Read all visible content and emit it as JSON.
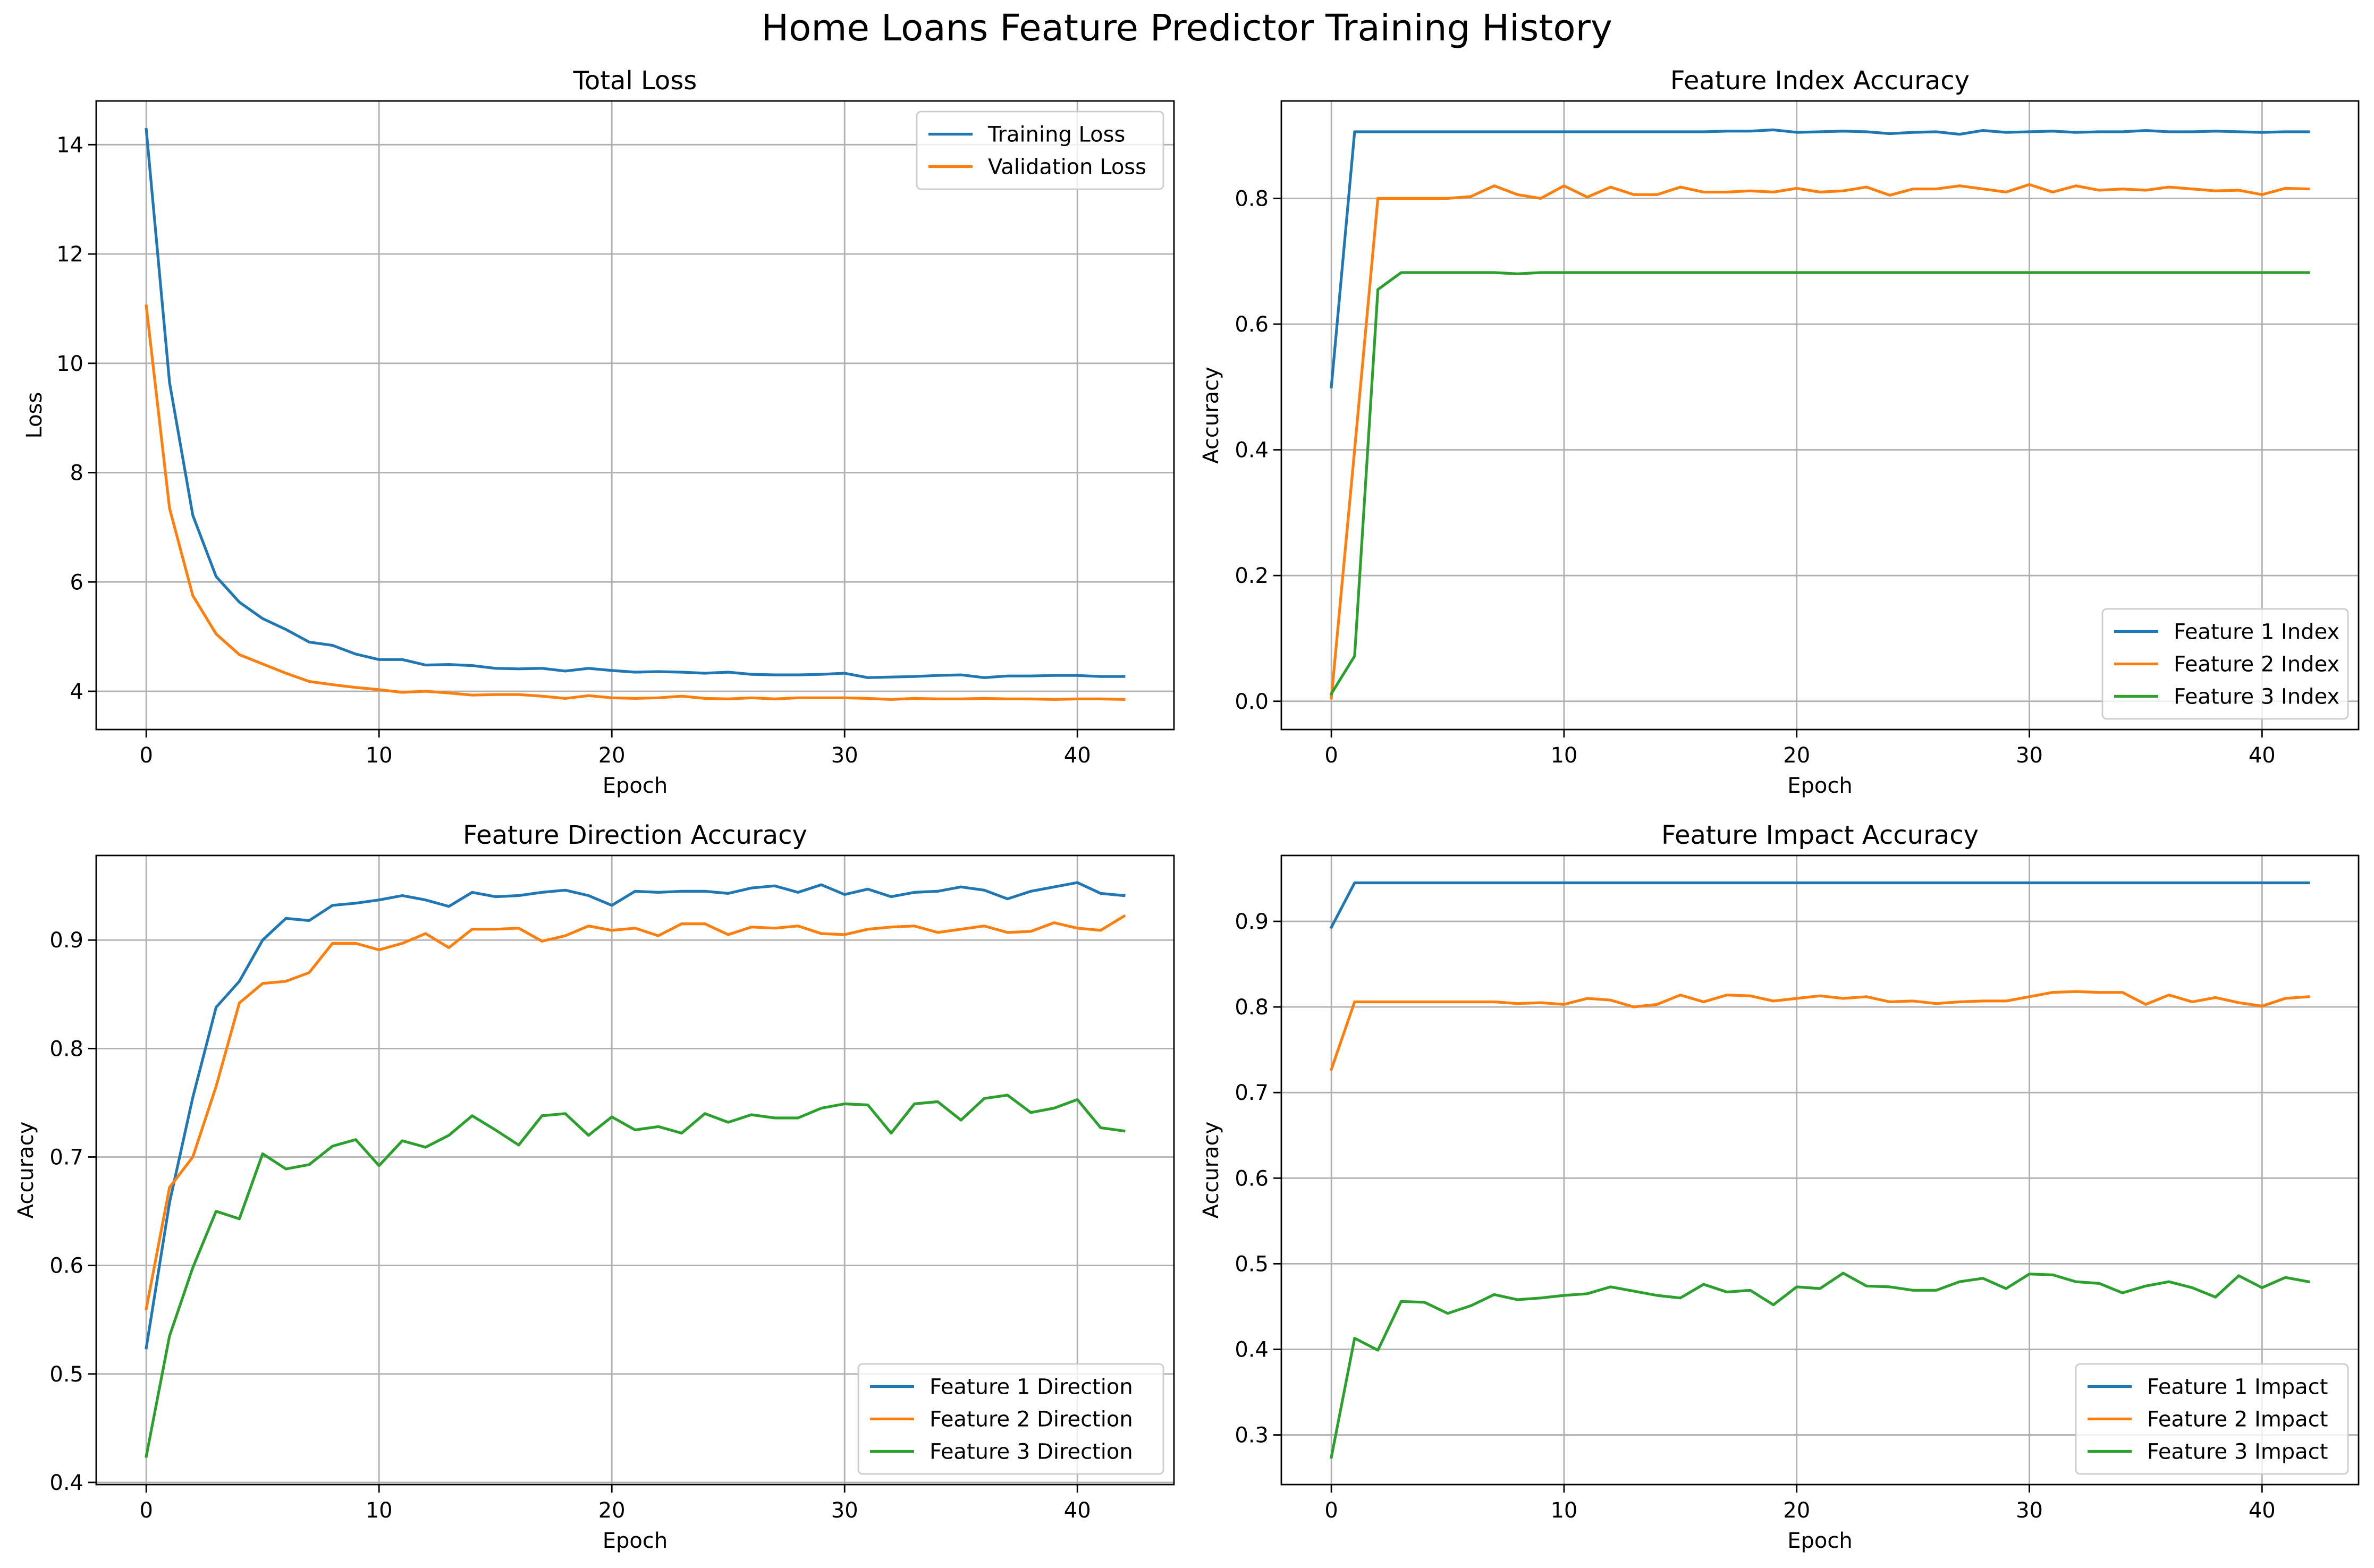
{
  "suptitle": "Home Loans Feature Predictor Training History",
  "colors": {
    "series1": "#1f77b4",
    "series2": "#ff7f0e",
    "series3": "#2ca02c",
    "grid": "#b0b0b0"
  },
  "chart_data": [
    {
      "type": "line",
      "title": "Total Loss",
      "xlabel": "Epoch",
      "ylabel": "Loss",
      "xlim": [
        -2.15,
        44.15
      ],
      "ylim": [
        3.3,
        14.8
      ],
      "xticks": [
        0,
        10,
        20,
        30,
        40
      ],
      "yticks": [
        4,
        6,
        8,
        10,
        12,
        14
      ],
      "ytick_labels": [
        "4",
        "6",
        "8",
        "10",
        "12",
        "14"
      ],
      "grid": true,
      "legend": "top-right",
      "x": [
        0,
        1,
        2,
        3,
        4,
        5,
        6,
        7,
        8,
        9,
        10,
        11,
        12,
        13,
        14,
        15,
        16,
        17,
        18,
        19,
        20,
        21,
        22,
        23,
        24,
        25,
        26,
        27,
        28,
        29,
        30,
        31,
        32,
        33,
        34,
        35,
        36,
        37,
        38,
        39,
        40,
        41,
        42
      ],
      "series": [
        {
          "name": "Training Loss",
          "values": [
            14.28,
            9.65,
            7.22,
            6.1,
            5.63,
            5.33,
            5.13,
            4.9,
            4.84,
            4.68,
            4.58,
            4.58,
            4.48,
            4.49,
            4.47,
            4.42,
            4.41,
            4.42,
            4.37,
            4.42,
            4.38,
            4.35,
            4.36,
            4.35,
            4.33,
            4.35,
            4.31,
            4.3,
            4.3,
            4.31,
            4.33,
            4.25,
            4.26,
            4.27,
            4.29,
            4.3,
            4.25,
            4.28,
            4.28,
            4.29,
            4.29,
            4.27,
            4.27
          ]
        },
        {
          "name": "Validation Loss",
          "values": [
            11.05,
            7.35,
            5.75,
            5.05,
            4.67,
            4.5,
            4.33,
            4.18,
            4.12,
            4.07,
            4.03,
            3.98,
            4.0,
            3.97,
            3.93,
            3.94,
            3.94,
            3.91,
            3.87,
            3.92,
            3.88,
            3.87,
            3.88,
            3.91,
            3.87,
            3.86,
            3.88,
            3.86,
            3.88,
            3.88,
            3.88,
            3.87,
            3.85,
            3.87,
            3.86,
            3.86,
            3.87,
            3.86,
            3.86,
            3.85,
            3.86,
            3.86,
            3.85
          ]
        }
      ]
    },
    {
      "type": "line",
      "title": "Feature Index Accuracy",
      "xlabel": "Epoch",
      "ylabel": "Accuracy",
      "xlim": [
        -2.15,
        44.15
      ],
      "ylim": [
        -0.045,
        0.955
      ],
      "xticks": [
        0,
        10,
        20,
        30,
        40
      ],
      "yticks": [
        0.0,
        0.2,
        0.4,
        0.6,
        0.8
      ],
      "ytick_labels": [
        "0.0",
        "0.2",
        "0.4",
        "0.6",
        "0.8"
      ],
      "grid": true,
      "legend": "bottom-right",
      "x": [
        0,
        1,
        2,
        3,
        4,
        5,
        6,
        7,
        8,
        9,
        10,
        11,
        12,
        13,
        14,
        15,
        16,
        17,
        18,
        19,
        20,
        21,
        22,
        23,
        24,
        25,
        26,
        27,
        28,
        29,
        30,
        31,
        32,
        33,
        34,
        35,
        36,
        37,
        38,
        39,
        40,
        41,
        42
      ],
      "series": [
        {
          "name": "Feature 1 Index",
          "values": [
            0.5,
            0.906,
            0.906,
            0.906,
            0.906,
            0.906,
            0.906,
            0.906,
            0.906,
            0.906,
            0.906,
            0.906,
            0.906,
            0.906,
            0.906,
            0.906,
            0.906,
            0.907,
            0.907,
            0.909,
            0.905,
            0.906,
            0.907,
            0.906,
            0.903,
            0.905,
            0.906,
            0.902,
            0.908,
            0.905,
            0.906,
            0.907,
            0.905,
            0.906,
            0.906,
            0.908,
            0.906,
            0.906,
            0.907,
            0.906,
            0.905,
            0.906,
            0.906
          ]
        },
        {
          "name": "Feature 2 Index",
          "values": [
            0.005,
            0.4,
            0.8,
            0.8,
            0.8,
            0.8,
            0.803,
            0.82,
            0.806,
            0.8,
            0.82,
            0.802,
            0.818,
            0.806,
            0.806,
            0.818,
            0.81,
            0.81,
            0.812,
            0.81,
            0.816,
            0.81,
            0.812,
            0.818,
            0.805,
            0.815,
            0.815,
            0.82,
            0.815,
            0.81,
            0.822,
            0.81,
            0.82,
            0.813,
            0.815,
            0.813,
            0.818,
            0.815,
            0.812,
            0.813,
            0.806,
            0.816,
            0.815
          ]
        },
        {
          "name": "Feature 3 Index",
          "values": [
            0.012,
            0.072,
            0.655,
            0.682,
            0.682,
            0.682,
            0.682,
            0.682,
            0.68,
            0.682,
            0.682,
            0.682,
            0.682,
            0.682,
            0.682,
            0.682,
            0.682,
            0.682,
            0.682,
            0.682,
            0.682,
            0.682,
            0.682,
            0.682,
            0.682,
            0.682,
            0.682,
            0.682,
            0.682,
            0.682,
            0.682,
            0.682,
            0.682,
            0.682,
            0.682,
            0.682,
            0.682,
            0.682,
            0.682,
            0.682,
            0.682,
            0.682,
            0.682
          ]
        }
      ]
    },
    {
      "type": "line",
      "title": "Feature Direction Accuracy",
      "xlabel": "Epoch",
      "ylabel": "Accuracy",
      "xlim": [
        -2.15,
        44.15
      ],
      "ylim": [
        0.398,
        0.978
      ],
      "xticks": [
        0,
        10,
        20,
        30,
        40
      ],
      "yticks": [
        0.4,
        0.5,
        0.6,
        0.7,
        0.8,
        0.9
      ],
      "ytick_labels": [
        "0.4",
        "0.5",
        "0.6",
        "0.7",
        "0.8",
        "0.9"
      ],
      "grid": true,
      "legend": "bottom-right",
      "x": [
        0,
        1,
        2,
        3,
        4,
        5,
        6,
        7,
        8,
        9,
        10,
        11,
        12,
        13,
        14,
        15,
        16,
        17,
        18,
        19,
        20,
        21,
        22,
        23,
        24,
        25,
        26,
        27,
        28,
        29,
        30,
        31,
        32,
        33,
        34,
        35,
        36,
        37,
        38,
        39,
        40,
        41,
        42
      ],
      "series": [
        {
          "name": "Feature 1 Direction",
          "values": [
            0.524,
            0.658,
            0.755,
            0.838,
            0.862,
            0.9,
            0.92,
            0.918,
            0.932,
            0.934,
            0.937,
            0.941,
            0.937,
            0.931,
            0.944,
            0.94,
            0.941,
            0.944,
            0.946,
            0.941,
            0.932,
            0.945,
            0.944,
            0.945,
            0.945,
            0.943,
            0.948,
            0.95,
            0.944,
            0.951,
            0.942,
            0.947,
            0.94,
            0.944,
            0.945,
            0.949,
            0.946,
            0.938,
            0.945,
            0.949,
            0.953,
            0.943,
            0.941
          ]
        },
        {
          "name": "Feature 2 Direction",
          "values": [
            0.56,
            0.672,
            0.7,
            0.765,
            0.842,
            0.86,
            0.862,
            0.87,
            0.897,
            0.897,
            0.891,
            0.897,
            0.906,
            0.893,
            0.91,
            0.91,
            0.911,
            0.899,
            0.904,
            0.913,
            0.909,
            0.911,
            0.904,
            0.915,
            0.915,
            0.905,
            0.912,
            0.911,
            0.913,
            0.906,
            0.905,
            0.91,
            0.912,
            0.913,
            0.907,
            0.91,
            0.913,
            0.907,
            0.908,
            0.916,
            0.911,
            0.909,
            0.922
          ]
        },
        {
          "name": "Feature 3 Direction",
          "values": [
            0.424,
            0.535,
            0.598,
            0.65,
            0.643,
            0.703,
            0.689,
            0.693,
            0.71,
            0.716,
            0.692,
            0.715,
            0.709,
            0.72,
            0.738,
            0.725,
            0.711,
            0.738,
            0.74,
            0.72,
            0.737,
            0.725,
            0.728,
            0.722,
            0.74,
            0.732,
            0.739,
            0.736,
            0.736,
            0.745,
            0.749,
            0.748,
            0.722,
            0.749,
            0.751,
            0.734,
            0.754,
            0.757,
            0.741,
            0.745,
            0.753,
            0.727,
            0.724
          ]
        }
      ]
    },
    {
      "type": "line",
      "title": "Feature Impact Accuracy",
      "xlabel": "Epoch",
      "ylabel": "Accuracy",
      "xlim": [
        -2.15,
        44.15
      ],
      "ylim": [
        0.242,
        0.977
      ],
      "xticks": [
        0,
        10,
        20,
        30,
        40
      ],
      "yticks": [
        0.3,
        0.4,
        0.5,
        0.6,
        0.7,
        0.8,
        0.9
      ],
      "ytick_labels": [
        "0.3",
        "0.4",
        "0.5",
        "0.6",
        "0.7",
        "0.8",
        "0.9"
      ],
      "grid": true,
      "legend": "bottom-right",
      "x": [
        0,
        1,
        2,
        3,
        4,
        5,
        6,
        7,
        8,
        9,
        10,
        11,
        12,
        13,
        14,
        15,
        16,
        17,
        18,
        19,
        20,
        21,
        22,
        23,
        24,
        25,
        26,
        27,
        28,
        29,
        30,
        31,
        32,
        33,
        34,
        35,
        36,
        37,
        38,
        39,
        40,
        41,
        42
      ],
      "series": [
        {
          "name": "Feature 1 Impact",
          "values": [
            0.893,
            0.945,
            0.945,
            0.945,
            0.945,
            0.945,
            0.945,
            0.945,
            0.945,
            0.945,
            0.945,
            0.945,
            0.945,
            0.945,
            0.945,
            0.945,
            0.945,
            0.945,
            0.945,
            0.945,
            0.945,
            0.945,
            0.945,
            0.945,
            0.945,
            0.945,
            0.945,
            0.945,
            0.945,
            0.945,
            0.945,
            0.945,
            0.945,
            0.945,
            0.945,
            0.945,
            0.945,
            0.945,
            0.945,
            0.945,
            0.945,
            0.945,
            0.945
          ]
        },
        {
          "name": "Feature 2 Impact",
          "values": [
            0.727,
            0.806,
            0.806,
            0.806,
            0.806,
            0.806,
            0.806,
            0.806,
            0.804,
            0.805,
            0.803,
            0.81,
            0.808,
            0.8,
            0.803,
            0.814,
            0.806,
            0.814,
            0.813,
            0.807,
            0.81,
            0.813,
            0.81,
            0.812,
            0.806,
            0.807,
            0.804,
            0.806,
            0.807,
            0.807,
            0.812,
            0.817,
            0.818,
            0.817,
            0.817,
            0.803,
            0.814,
            0.806,
            0.811,
            0.805,
            0.801,
            0.81,
            0.812
          ]
        },
        {
          "name": "Feature 3 Impact",
          "values": [
            0.274,
            0.413,
            0.399,
            0.456,
            0.455,
            0.442,
            0.451,
            0.464,
            0.458,
            0.46,
            0.463,
            0.465,
            0.473,
            0.468,
            0.463,
            0.46,
            0.476,
            0.467,
            0.469,
            0.452,
            0.473,
            0.471,
            0.489,
            0.474,
            0.473,
            0.469,
            0.469,
            0.479,
            0.483,
            0.471,
            0.488,
            0.487,
            0.479,
            0.477,
            0.466,
            0.474,
            0.479,
            0.472,
            0.461,
            0.486,
            0.472,
            0.484,
            0.479
          ]
        }
      ]
    }
  ]
}
